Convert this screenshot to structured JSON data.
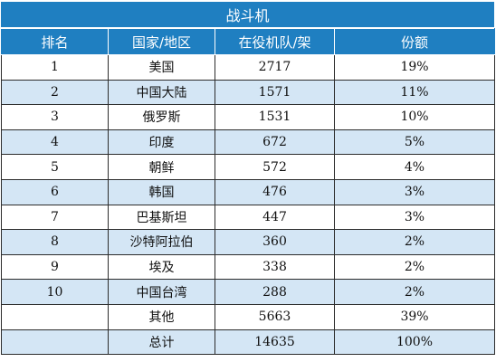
{
  "table": {
    "title": "战斗机",
    "headers": [
      "排名",
      "国家/地区",
      "在役机队/架",
      "份额"
    ],
    "rows": [
      {
        "rank": "1",
        "country": "美国",
        "fleet": "2717",
        "share": "19%"
      },
      {
        "rank": "2",
        "country": "中国大陆",
        "fleet": "1571",
        "share": "11%"
      },
      {
        "rank": "3",
        "country": "俄罗斯",
        "fleet": "1531",
        "share": "10%"
      },
      {
        "rank": "4",
        "country": "印度",
        "fleet": "672",
        "share": "5%"
      },
      {
        "rank": "5",
        "country": "朝鲜",
        "fleet": "572",
        "share": "4%"
      },
      {
        "rank": "6",
        "country": "韩国",
        "fleet": "476",
        "share": "3%"
      },
      {
        "rank": "7",
        "country": "巴基斯坦",
        "fleet": "447",
        "share": "3%"
      },
      {
        "rank": "8",
        "country": "沙特阿拉伯",
        "fleet": "360",
        "share": "2%"
      },
      {
        "rank": "9",
        "country": "埃及",
        "fleet": "338",
        "share": "2%"
      },
      {
        "rank": "10",
        "country": "中国台湾",
        "fleet": "288",
        "share": "2%"
      },
      {
        "rank": "",
        "country": "其他",
        "fleet": "5663",
        "share": "39%"
      },
      {
        "rank": "",
        "country": "总计",
        "fleet": "14635",
        "share": "100%"
      }
    ]
  },
  "colors": {
    "header_blue": "#1f7fc1",
    "row_stripe": "#d4e6f5"
  }
}
